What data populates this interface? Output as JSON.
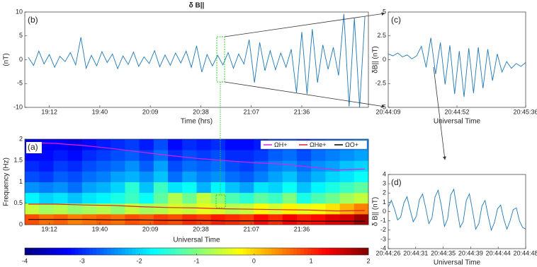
{
  "chart_data": [
    {
      "type": "line",
      "label": "(b)",
      "title": "δ B||",
      "xlabel": "Time (hrs)",
      "ylabel": "(nT)",
      "xlim": [
        1138,
        1334
      ],
      "xticks": [
        {
          "value": 1152,
          "label": "19:12"
        },
        {
          "value": 1180.8,
          "label": "19:40"
        },
        {
          "value": 1209.6,
          "label": "20:09"
        },
        {
          "value": 1238.4,
          "label": "20:38"
        },
        {
          "value": 1267.2,
          "label": "21:07"
        },
        {
          "value": 1296,
          "label": "21:36"
        }
      ],
      "ylim": [
        -10,
        10
      ],
      "yticks": [
        -10,
        -5,
        0,
        5,
        10
      ],
      "series": [
        {
          "color": "#1f77b4",
          "x": [
            1140,
            1143,
            1146,
            1149,
            1152,
            1155,
            1158,
            1161,
            1164,
            1167,
            1170,
            1173,
            1176,
            1179,
            1182,
            1185,
            1188,
            1191,
            1194,
            1197,
            1200,
            1203,
            1206,
            1209,
            1212,
            1215,
            1218,
            1221,
            1224,
            1227,
            1230,
            1233,
            1236,
            1239,
            1242,
            1245,
            1248,
            1251,
            1254,
            1257,
            1260,
            1263,
            1266,
            1269,
            1272,
            1275,
            1278,
            1281,
            1284,
            1287,
            1290,
            1293,
            1296,
            1299,
            1302,
            1305,
            1308,
            1311,
            1314,
            1317,
            1320,
            1323,
            1326,
            1329,
            1332
          ],
          "values": [
            0.5,
            -1.2,
            1.8,
            -0.9,
            1.1,
            -1.6,
            0.7,
            -0.4,
            1.5,
            -1.1,
            4.7,
            -1.8,
            0.9,
            -1.3,
            1.7,
            -0.6,
            1.2,
            -1.9,
            0.8,
            -1.0,
            1.6,
            -1.4,
            0.6,
            -0.8,
            1.9,
            -1.5,
            1.0,
            -1.2,
            1.4,
            -0.7,
            1.8,
            -1.6,
            2.9,
            -2.6,
            1.1,
            -1.3,
            0.9,
            -1.1,
            1.5,
            -1.8,
            1.2,
            -0.9,
            4.2,
            -4.8,
            3.6,
            -2.3,
            1.9,
            -2.1,
            1.4,
            -1.6,
            2.2,
            -6.9,
            5.8,
            -7.2,
            6.4,
            -4.8,
            3.1,
            -2.0,
            2.6,
            -3.3,
            9.6,
            -9.8,
            8.7,
            -10,
            9.1
          ]
        }
      ]
    },
    {
      "type": "heatmap",
      "label": "(a)",
      "xlabel": "Universal Time",
      "ylabel": "Frequency (Hz)",
      "xlim": [
        1138,
        1334
      ],
      "xticks": [
        {
          "value": 1152,
          "label": "19:12"
        },
        {
          "value": 1180.8,
          "label": "19:40"
        },
        {
          "value": 1209.6,
          "label": "20:09"
        },
        {
          "value": 1238.4,
          "label": "20:38"
        },
        {
          "value": 1267.2,
          "label": "21:07"
        },
        {
          "value": 1296,
          "label": "21:36"
        }
      ],
      "ylim": [
        0,
        2
      ],
      "yticks": [
        0,
        0.5,
        1,
        1.5,
        2
      ],
      "clim": [
        -4,
        2
      ],
      "cticks": [
        -4,
        -3,
        -2,
        -1,
        0,
        1,
        2
      ],
      "colormap": "jet",
      "z": [
        [
          0.8,
          0.6,
          0.7,
          0.5,
          0.6,
          0.7,
          0.6,
          0.8,
          0.7,
          0.9,
          0.8,
          1.0,
          0.9,
          1.1,
          1.0,
          0.9,
          1.2,
          1.0,
          1.3,
          1.1,
          1.2,
          1.4,
          1.5,
          1.8
        ],
        [
          -0.6,
          -0.8,
          -0.7,
          -0.9,
          -0.8,
          -0.7,
          -0.9,
          -0.6,
          -0.8,
          -0.7,
          -0.5,
          -0.6,
          -0.4,
          -0.5,
          -0.7,
          -0.6,
          -0.3,
          -0.5,
          -0.2,
          -0.4,
          -0.3,
          -0.1,
          0.2,
          0.5
        ],
        [
          -1.8,
          -2.0,
          -1.9,
          -2.1,
          -1.9,
          -1.8,
          -1.6,
          -1.4,
          -1.7,
          -1.2,
          -0.7,
          -1.1,
          -0.6,
          -0.9,
          -1.3,
          -1.5,
          -1.2,
          -1.4,
          -1.0,
          -1.6,
          -1.3,
          -1.1,
          -0.8,
          -0.6
        ],
        [
          -2.4,
          -2.5,
          -2.4,
          -2.6,
          -2.3,
          -2.2,
          -2.0,
          -1.5,
          -2.1,
          -1.4,
          -1.9,
          -1.7,
          -2.2,
          -1.8,
          -2.1,
          -2.3,
          -1.9,
          -2.0,
          -1.7,
          -2.1,
          -1.8,
          -1.6,
          -1.4,
          -1.2
        ],
        [
          -2.8,
          -2.9,
          -2.7,
          -2.8,
          -2.6,
          -2.5,
          -2.3,
          -2.2,
          -2.4,
          -2.1,
          -2.6,
          -2.3,
          -2.5,
          -2.4,
          -2.6,
          -2.7,
          -2.5,
          -2.3,
          -2.1,
          -2.4,
          -2.2,
          -2.0,
          -1.9,
          -1.7
        ],
        [
          -3.0,
          -3.1,
          -2.9,
          -3.0,
          -2.8,
          -2.7,
          -2.6,
          -2.4,
          -2.7,
          -2.3,
          -2.8,
          -2.6,
          -2.7,
          -2.6,
          -2.8,
          -2.9,
          -2.7,
          -2.5,
          -2.4,
          -2.6,
          -2.4,
          -2.3,
          -2.1,
          -2.0
        ],
        [
          -3.2,
          -3.2,
          -3.1,
          -3.2,
          -3.0,
          -2.9,
          -2.8,
          -2.7,
          -2.9,
          -2.6,
          -3.0,
          -2.8,
          -2.9,
          -2.8,
          -3.0,
          -3.0,
          -2.9,
          -2.7,
          -2.6,
          -2.8,
          -2.6,
          -2.5,
          -2.4,
          -2.3
        ],
        [
          -3.4,
          -3.3,
          -3.3,
          -3.4,
          -3.2,
          -3.1,
          -3.0,
          -2.9,
          -3.1,
          -2.8,
          -3.2,
          -3.0,
          -3.1,
          -3.0,
          -3.2,
          -3.2,
          -3.1,
          -2.9,
          -2.8,
          -3.0,
          -2.8,
          -2.7,
          -2.6,
          -2.5
        ]
      ],
      "x": [
        1140,
        1156,
        1172,
        1188,
        1204,
        1220,
        1236,
        1252,
        1268,
        1284,
        1300,
        1316,
        1332
      ],
      "series": [
        {
          "name": "ΩH+",
          "color": "#e020e0",
          "values": [
            1.92,
            1.9,
            1.85,
            1.78,
            1.7,
            1.62,
            1.55,
            1.5,
            1.45,
            1.42,
            1.35,
            1.28,
            1.3
          ]
        },
        {
          "name": "ΩHe+",
          "color": "#e02020",
          "values": [
            0.48,
            0.48,
            0.46,
            0.45,
            0.42,
            0.4,
            0.39,
            0.37,
            0.36,
            0.35,
            0.34,
            0.32,
            0.33
          ]
        },
        {
          "name": "ΩO+",
          "color": "#000000",
          "values": [
            0.12,
            0.12,
            0.12,
            0.11,
            0.11,
            0.1,
            0.1,
            0.09,
            0.09,
            0.09,
            0.08,
            0.08,
            0.08
          ]
        }
      ],
      "legend": "upper right"
    },
    {
      "type": "line",
      "label": "(c)",
      "xlabel": "Universal Time",
      "ylabel": "δB|| (nT)",
      "xlim": [
        74649,
        74736
      ],
      "xticks": [
        {
          "value": 74649,
          "label": "20:44:09"
        },
        {
          "value": 74692.5,
          "label": "20:44:52"
        },
        {
          "value": 74736,
          "label": "20:45:36"
        }
      ],
      "ylim": [
        -5,
        5
      ],
      "yticks": [
        -5,
        -2.5,
        0,
        2.5,
        5
      ],
      "series": [
        {
          "color": "#1f77b4",
          "x": [
            74649,
            74652,
            74655,
            74658,
            74661,
            74664,
            74667,
            74670,
            74673,
            74676,
            74679,
            74682,
            74685,
            74688,
            74691,
            74694,
            74697,
            74700,
            74703,
            74706,
            74709,
            74712,
            74715,
            74718,
            74721,
            74724,
            74727,
            74730,
            74733,
            74736
          ],
          "values": [
            0.6,
            0.4,
            0.7,
            0.3,
            0.5,
            0.1,
            0.4,
            1.4,
            -0.8,
            2.3,
            -1.5,
            1.8,
            -2.6,
            1.5,
            -3.6,
            0.9,
            -3.9,
            1.2,
            -3.5,
            1.3,
            -3.0,
            1.1,
            -2.2,
            0.6,
            -1.3,
            -0.2,
            -0.9,
            -0.4,
            -0.7,
            -0.3
          ]
        }
      ]
    },
    {
      "type": "line",
      "label": "(d)",
      "xlabel": "Universal Time",
      "ylabel": "δ B|| (nT)",
      "xlim": [
        74666,
        74688
      ],
      "xticks": [
        {
          "value": 74666,
          "label": "20:44:26"
        },
        {
          "value": 74670.4,
          "label": "20:44:31"
        },
        {
          "value": 74674.8,
          "label": "20:44:35"
        },
        {
          "value": 74679.2,
          "label": "20:44:39"
        },
        {
          "value": 74683.6,
          "label": "20:44:44"
        },
        {
          "value": 74688,
          "label": "20:44:48"
        }
      ],
      "ylim": [
        -4,
        4
      ],
      "yticks": [
        -4,
        -3,
        -2,
        -1,
        0,
        1,
        2,
        3,
        4
      ],
      "series": [
        {
          "color": "#1f77b4",
          "x": [
            74666,
            74666.5,
            74667,
            74667.5,
            74668,
            74668.5,
            74669,
            74669.5,
            74670,
            74670.5,
            74671,
            74671.5,
            74672,
            74672.5,
            74673,
            74673.5,
            74674,
            74674.5,
            74675,
            74675.5,
            74676,
            74676.5,
            74677,
            74677.5,
            74678,
            74678.5,
            74679,
            74679.5,
            74680,
            74680.5,
            74681,
            74681.5,
            74682,
            74682.5,
            74683,
            74683.5,
            74684,
            74684.5,
            74685,
            74685.5,
            74686,
            74686.5,
            74687,
            74687.5,
            74688
          ],
          "values": [
            0.5,
            1.2,
            0.3,
            -0.9,
            -0.6,
            0.9,
            1.6,
            0.2,
            -1.1,
            -0.5,
            1.3,
            1.9,
            0.4,
            -1.3,
            -0.7,
            1.6,
            2.3,
            0.6,
            -1.6,
            -0.8,
            1.8,
            2.4,
            0.3,
            -1.7,
            -1.1,
            1.2,
            1.9,
            0.1,
            -1.9,
            -1.3,
            0.6,
            1.2,
            -0.5,
            -2.0,
            -1.2,
            0.3,
            0.7,
            -0.8,
            -1.9,
            -1.0,
            0.2,
            0.4,
            -1.0,
            -1.7,
            -1.9
          ]
        }
      ]
    }
  ]
}
